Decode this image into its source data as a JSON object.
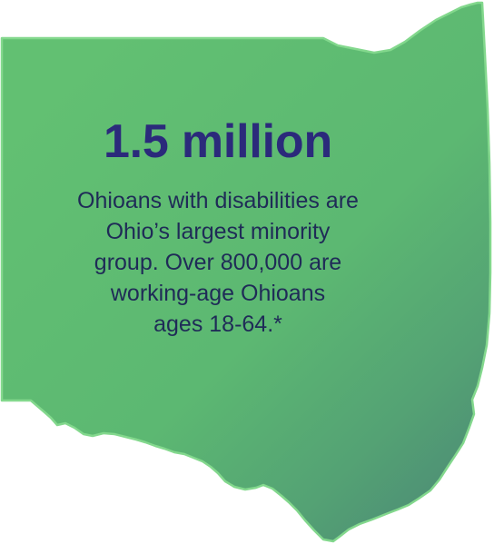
{
  "graphic": {
    "shape_icon": "ohio-state-map-icon",
    "colors": {
      "map_fill_top": "#5fbe71",
      "map_fill_bottom": "#4e8f76",
      "map_outline": "#7fd489",
      "headline": "#2b2a7b",
      "body_text": "#1f2b57"
    }
  },
  "stat": {
    "headline": "1.5 million",
    "lines": [
      "Ohioans with disabilities are",
      "Ohio’s largest minority",
      "group. Over 800,000 are",
      "working-age Ohioans",
      "ages 18-64.*"
    ]
  }
}
